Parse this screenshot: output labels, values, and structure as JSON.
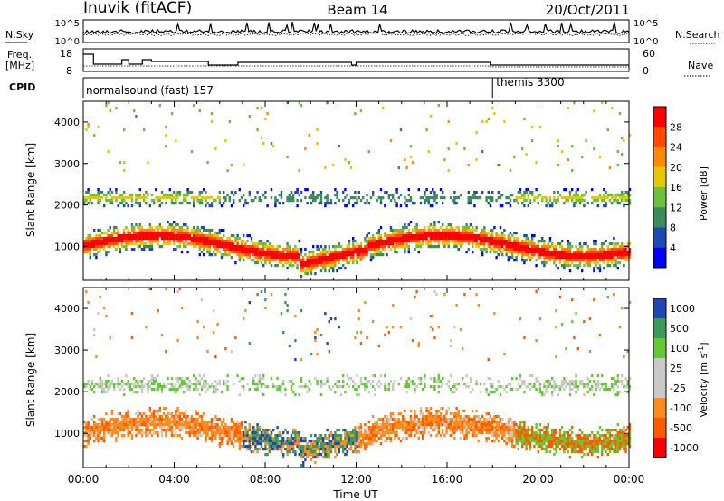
{
  "header": {
    "station": "Inuvik (fitACF)",
    "beam": "Beam 14",
    "date": "20/Oct/2011"
  },
  "noise_panel": {
    "left_label": "N.Sky",
    "right_label": "N.Search",
    "ticks_left": [
      "10^5",
      "10^0"
    ],
    "ticks_right": [
      "10^5",
      "10^0"
    ]
  },
  "freq_panel": {
    "left_label_line1": "Freq.",
    "left_label_line2": "[MHz]",
    "right_label": "Nave",
    "ticks_left": [
      "18",
      "8"
    ],
    "ticks_right": [
      "60",
      "0"
    ]
  },
  "cpid_panel": {
    "label": "CPID",
    "segments": [
      {
        "name": "normalsound (fast) 157",
        "start_hour": 0
      },
      {
        "name": "themis 3300",
        "start_hour": 18
      }
    ]
  },
  "colors": {
    "power": [
      "#0000ff",
      "#1c4bb4",
      "#3a8c5a",
      "#6cc03c",
      "#e6c800",
      "#ff8a00",
      "#ff4a00",
      "#ff0000"
    ],
    "velocity": [
      "#ff0000",
      "#ff5a00",
      "#ff8c1a",
      "#c8c8c8",
      "#c8c8c8",
      "#64c832",
      "#3c9a5a",
      "#1e46b4"
    ]
  },
  "chart_data": [
    {
      "type": "heatmap",
      "quantity": "power",
      "xlabel": "",
      "ylabel": "Slant Range [km]",
      "xlim": [
        0,
        24
      ],
      "ylim": [
        180,
        4500
      ],
      "yticks": [
        1000,
        2000,
        3000,
        4000
      ],
      "colorbar_label": "Power [dB]",
      "colorbar_ticks": [
        "4",
        "8",
        "12",
        "16",
        "20",
        "24",
        "28"
      ],
      "colorbar_range": [
        0,
        32
      ]
    },
    {
      "type": "heatmap",
      "quantity": "velocity",
      "xlabel": "Time UT",
      "ylabel": "Slant Range [km]",
      "xlim": [
        0,
        24
      ],
      "ylim": [
        180,
        4500
      ],
      "yticks": [
        1000,
        2000,
        3000,
        4000
      ],
      "xticks": [
        "00:00",
        "04:00",
        "08:00",
        "12:00",
        "16:00",
        "20:00",
        "00:00"
      ],
      "colorbar_label": "Velocity [m s",
      "colorbar_label_exp": "-1",
      "colorbar_label_end": "]",
      "colorbar_ticks": [
        "1000",
        "500",
        "100",
        "25",
        "-25",
        "-100",
        "-500",
        "-1000"
      ]
    }
  ]
}
